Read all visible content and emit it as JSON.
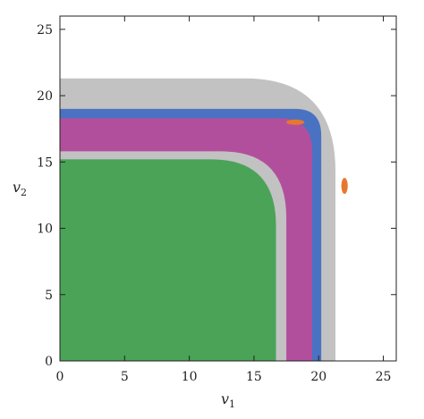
{
  "chart_data": {
    "type": "heatmap",
    "title": "",
    "xlabel": {
      "main": "v",
      "sub": "1"
    },
    "ylabel": {
      "main": "v",
      "sub": "2"
    },
    "xlim": [
      0,
      26
    ],
    "ylim": [
      0,
      26
    ],
    "xticks": [
      0,
      5,
      10,
      15,
      20,
      25
    ],
    "yticks": [
      0,
      5,
      10,
      15,
      20,
      25
    ],
    "grid": false,
    "colors": {
      "green": "#4aa357",
      "magenta": "#b24f9c",
      "blue": "#4a72c2",
      "gray": "#c2c2c2",
      "orange": "#e8772e",
      "background": "#ffffff"
    },
    "regions": [
      {
        "name": "gray-outer",
        "color": "gray",
        "corner": [
          21.3,
          21.3
        ],
        "top_start_x": 10.0,
        "top_end_y": 10.0,
        "corner_radius": 7.0
      },
      {
        "name": "blue",
        "color": "blue",
        "corner": [
          20.2,
          19.0
        ],
        "top_start_x": 14.5,
        "top_end_y": 11.5,
        "corner_radius": 2.0
      },
      {
        "name": "magenta",
        "color": "magenta",
        "corner": [
          19.5,
          18.3
        ],
        "top_start_x": 14.5,
        "top_end_y": 11.5,
        "corner_radius": 2.5
      },
      {
        "name": "gray-inner",
        "color": "gray",
        "corner": [
          17.5,
          15.8
        ],
        "top_start_x": 9.0,
        "top_end_y": 9.0,
        "corner_radius": 5.0
      },
      {
        "name": "green",
        "color": "green",
        "corner": [
          16.7,
          15.2
        ],
        "top_start_x": 9.0,
        "top_end_y": 9.0,
        "corner_radius": 5.0
      }
    ]
  }
}
